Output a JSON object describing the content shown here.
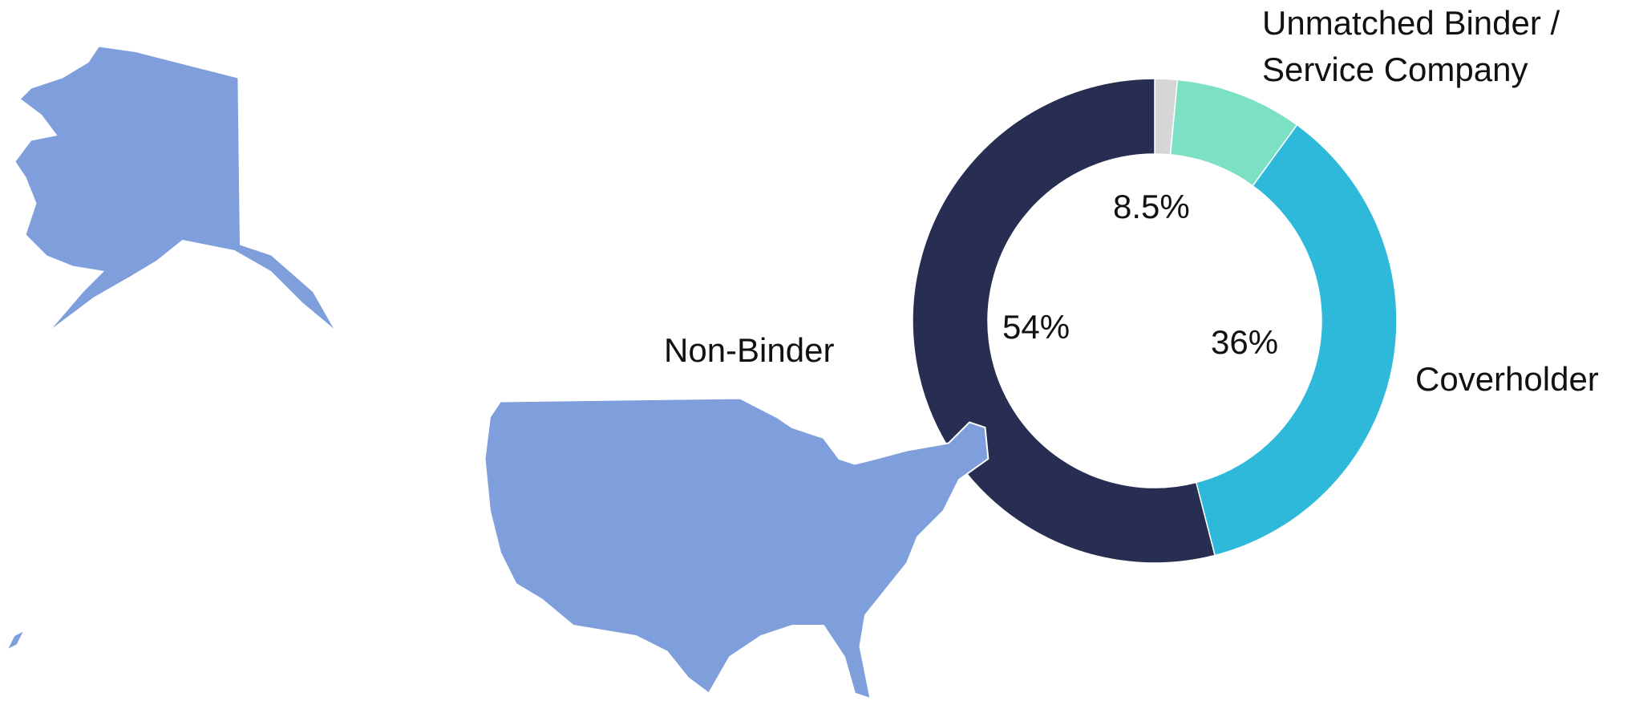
{
  "chart_data": {
    "type": "donut",
    "categories": [
      null,
      "Unmatched Binder / Service Company",
      "Coverholder",
      "Non-Binder"
    ],
    "values": [
      1.5,
      8.5,
      36,
      54
    ],
    "value_labels": [
      null,
      "8.5%",
      "36%",
      "54%"
    ],
    "colors": [
      "#d6d6d6",
      "#7ce0c4",
      "#2eb8d9",
      "#272e52"
    ],
    "start_angle": 0,
    "direction": "clockwise"
  }
}
